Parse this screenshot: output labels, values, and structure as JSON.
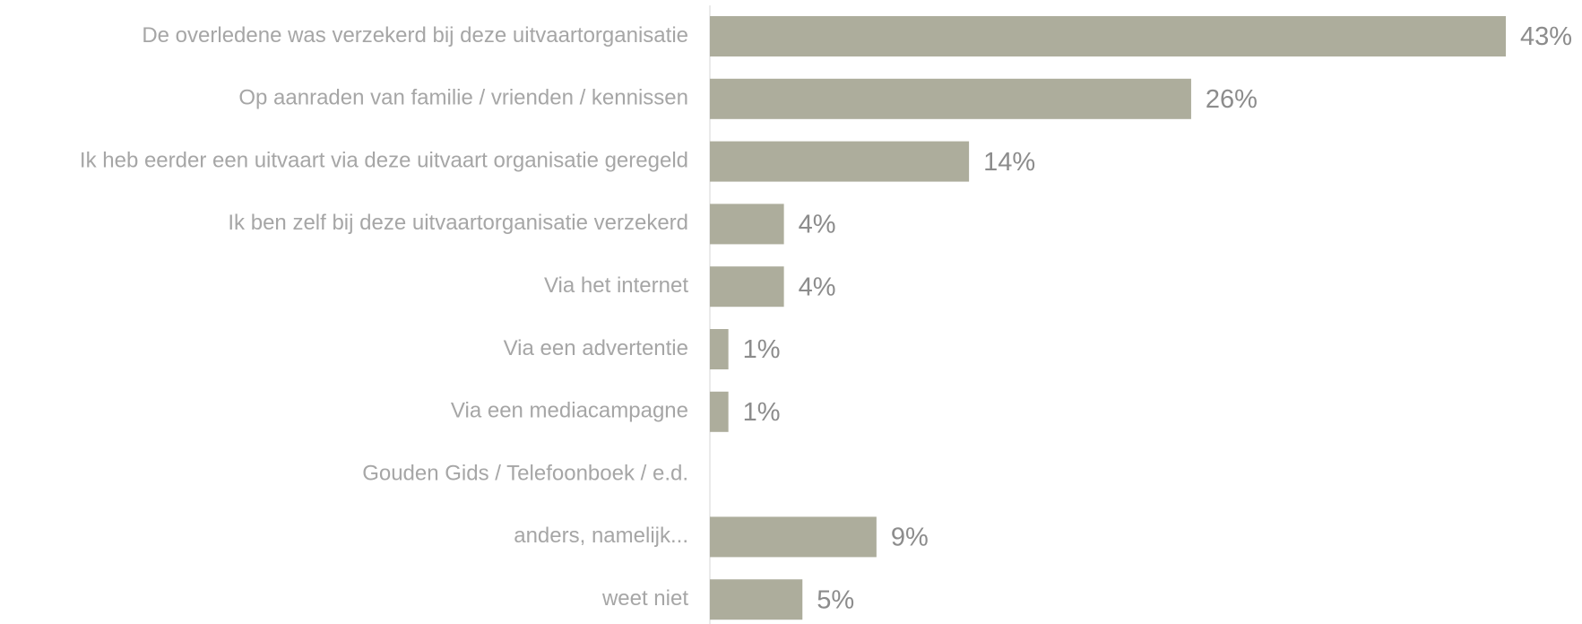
{
  "chart_data": {
    "type": "hbar",
    "categories": [
      "De overledene was verzekerd bij deze uitvaartorganisatie",
      "Op aanraden van familie / vrienden / kennissen",
      "Ik heb eerder een uitvaart via deze uitvaart organisatie geregeld",
      "Ik ben zelf bij deze uitvaartorganisatie verzekerd",
      "Via het internet",
      "Via een advertentie",
      "Via een mediacampagne",
      "Gouden Gids / Telefoonboek / e.d.",
      "anders, namelijk...",
      "weet niet"
    ],
    "values": [
      43,
      26,
      14,
      4,
      4,
      1,
      1,
      null,
      9,
      5
    ],
    "value_labels": [
      "43%",
      "26%",
      "14%",
      "4%",
      "4%",
      "1%",
      "1%",
      null,
      "9%",
      "5%"
    ],
    "color": "#adad9c"
  }
}
